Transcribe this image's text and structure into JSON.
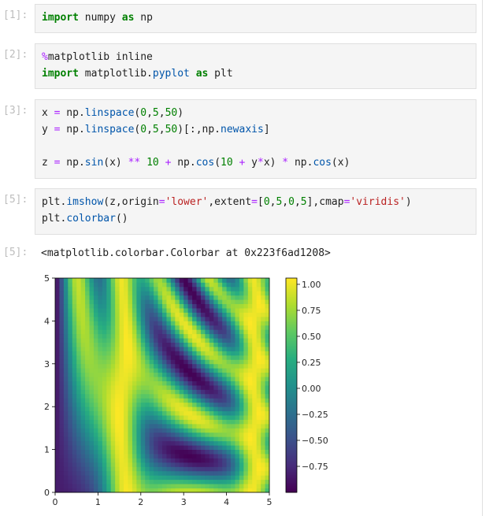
{
  "cells": [
    {
      "prompt": "[1]:",
      "lines": [
        [
          {
            "t": "import",
            "c": "kw"
          },
          {
            "t": " numpy ",
            "c": "n"
          },
          {
            "t": "as",
            "c": "kw"
          },
          {
            "t": " np",
            "c": "n"
          }
        ]
      ]
    },
    {
      "prompt": "[2]:",
      "lines": [
        [
          {
            "t": "%",
            "c": "op"
          },
          {
            "t": "matplotlib inline",
            "c": "n"
          }
        ],
        [
          {
            "t": "import",
            "c": "kw"
          },
          {
            "t": " matplotlib.",
            "c": "n"
          },
          {
            "t": "pyplot",
            "c": "nm"
          },
          {
            "t": " ",
            "c": "n"
          },
          {
            "t": "as",
            "c": "kw"
          },
          {
            "t": " plt",
            "c": "n"
          }
        ]
      ]
    },
    {
      "prompt": "[3]:",
      "lines": [
        [
          {
            "t": "x ",
            "c": "n"
          },
          {
            "t": "=",
            "c": "op"
          },
          {
            "t": " np.",
            "c": "n"
          },
          {
            "t": "linspace",
            "c": "nm"
          },
          {
            "t": "(",
            "c": "n"
          },
          {
            "t": "0",
            "c": "num"
          },
          {
            "t": ",",
            "c": "n"
          },
          {
            "t": "5",
            "c": "num"
          },
          {
            "t": ",",
            "c": "n"
          },
          {
            "t": "50",
            "c": "num"
          },
          {
            "t": ")",
            "c": "n"
          }
        ],
        [
          {
            "t": "y ",
            "c": "n"
          },
          {
            "t": "=",
            "c": "op"
          },
          {
            "t": " np.",
            "c": "n"
          },
          {
            "t": "linspace",
            "c": "nm"
          },
          {
            "t": "(",
            "c": "n"
          },
          {
            "t": "0",
            "c": "num"
          },
          {
            "t": ",",
            "c": "n"
          },
          {
            "t": "5",
            "c": "num"
          },
          {
            "t": ",",
            "c": "n"
          },
          {
            "t": "50",
            "c": "num"
          },
          {
            "t": ")[:,np.",
            "c": "n"
          },
          {
            "t": "newaxis",
            "c": "nm"
          },
          {
            "t": "]",
            "c": "n"
          }
        ],
        [],
        [
          {
            "t": "z ",
            "c": "n"
          },
          {
            "t": "=",
            "c": "op"
          },
          {
            "t": " np.",
            "c": "n"
          },
          {
            "t": "sin",
            "c": "nm"
          },
          {
            "t": "(x) ",
            "c": "n"
          },
          {
            "t": "**",
            "c": "op"
          },
          {
            "t": " ",
            "c": "n"
          },
          {
            "t": "10",
            "c": "num"
          },
          {
            "t": " ",
            "c": "n"
          },
          {
            "t": "+",
            "c": "op"
          },
          {
            "t": " np.",
            "c": "n"
          },
          {
            "t": "cos",
            "c": "nm"
          },
          {
            "t": "(",
            "c": "n"
          },
          {
            "t": "10",
            "c": "num"
          },
          {
            "t": " ",
            "c": "n"
          },
          {
            "t": "+",
            "c": "op"
          },
          {
            "t": " y",
            "c": "n"
          },
          {
            "t": "*",
            "c": "op"
          },
          {
            "t": "x) ",
            "c": "n"
          },
          {
            "t": "*",
            "c": "op"
          },
          {
            "t": " np.",
            "c": "n"
          },
          {
            "t": "cos",
            "c": "nm"
          },
          {
            "t": "(x)",
            "c": "n"
          }
        ]
      ]
    },
    {
      "prompt": "[5]:",
      "lines": [
        [
          {
            "t": "plt.",
            "c": "n"
          },
          {
            "t": "imshow",
            "c": "nm"
          },
          {
            "t": "(z,origin",
            "c": "n"
          },
          {
            "t": "=",
            "c": "op"
          },
          {
            "t": "'lower'",
            "c": "str"
          },
          {
            "t": ",extent",
            "c": "n"
          },
          {
            "t": "=",
            "c": "op"
          },
          {
            "t": "[",
            "c": "n"
          },
          {
            "t": "0",
            "c": "num"
          },
          {
            "t": ",",
            "c": "n"
          },
          {
            "t": "5",
            "c": "num"
          },
          {
            "t": ",",
            "c": "n"
          },
          {
            "t": "0",
            "c": "num"
          },
          {
            "t": ",",
            "c": "n"
          },
          {
            "t": "5",
            "c": "num"
          },
          {
            "t": "],cmap",
            "c": "n"
          },
          {
            "t": "=",
            "c": "op"
          },
          {
            "t": "'viridis'",
            "c": "str"
          },
          {
            "t": ")",
            "c": "n"
          }
        ],
        [
          {
            "t": "plt.",
            "c": "n"
          },
          {
            "t": "colorbar",
            "c": "nm"
          },
          {
            "t": "()",
            "c": "n"
          }
        ]
      ]
    }
  ],
  "output": {
    "prompt": "[5]:",
    "text": "<matplotlib.colorbar.Colorbar at 0x223f6ad1208>"
  },
  "syntax_colors": {
    "kw": "#008000",
    "op": "#aa22ff",
    "nm": "#0055aa",
    "num": "#008000",
    "str": "#ba2121",
    "n": "#212121"
  },
  "chart_data": {
    "type": "heatmap",
    "cmap": "viridis",
    "origin": "lower",
    "grid": {
      "nx": 50,
      "ny": 50
    },
    "xlim": [
      0,
      5
    ],
    "ylim": [
      0,
      5
    ],
    "z_expression": "np.sin(x) ** 10 + np.cos(10 + y*x) * np.cos(x)",
    "xticks": [
      "0",
      "1",
      "2",
      "3",
      "4",
      "5"
    ],
    "yticks": [
      "0",
      "1",
      "2",
      "3",
      "4",
      "5"
    ],
    "colorbar": {
      "range": [
        -1.0,
        1.06
      ],
      "ticks": [
        1.0,
        0.75,
        0.5,
        0.25,
        0.0,
        -0.25,
        -0.5,
        -0.75
      ],
      "tick_labels": [
        "1.00",
        "0.75",
        "0.50",
        "0.25",
        "0.00",
        "−0.25",
        "−0.50",
        "−0.75"
      ]
    }
  }
}
